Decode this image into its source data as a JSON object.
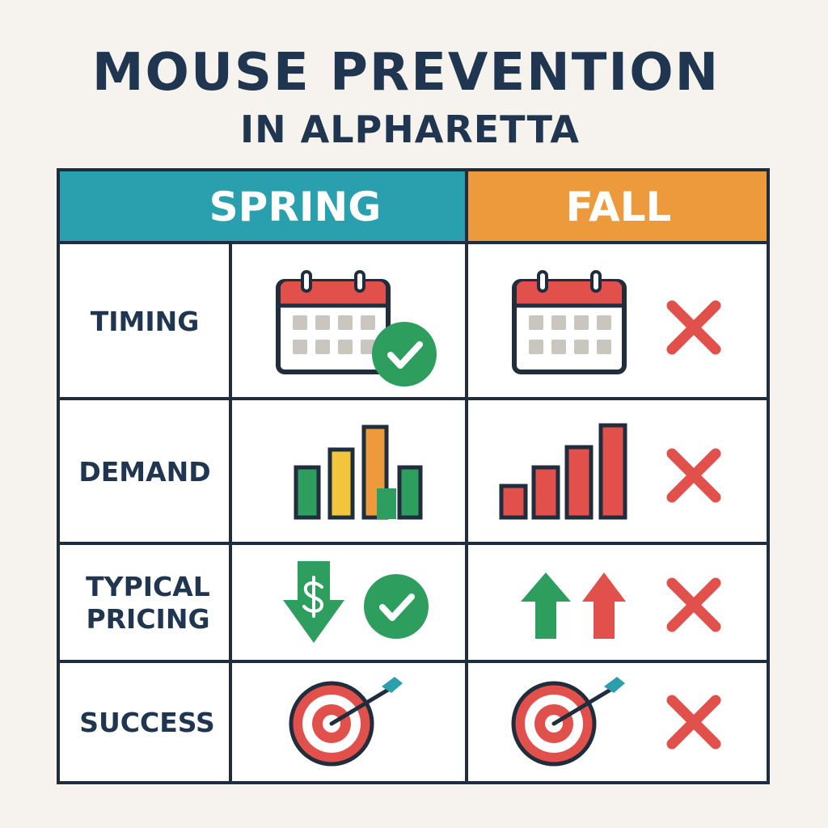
{
  "title": "MOUSE PREVENTION",
  "subtitle": "IN ALPHARETTA",
  "table": {
    "columns": [
      "SPRING",
      "FALL"
    ],
    "rows": [
      {
        "label": "TIMING"
      },
      {
        "label": "DEMAND"
      },
      {
        "label": "TYPICAL PRICING"
      },
      {
        "label": "SUCCESS"
      }
    ]
  }
}
